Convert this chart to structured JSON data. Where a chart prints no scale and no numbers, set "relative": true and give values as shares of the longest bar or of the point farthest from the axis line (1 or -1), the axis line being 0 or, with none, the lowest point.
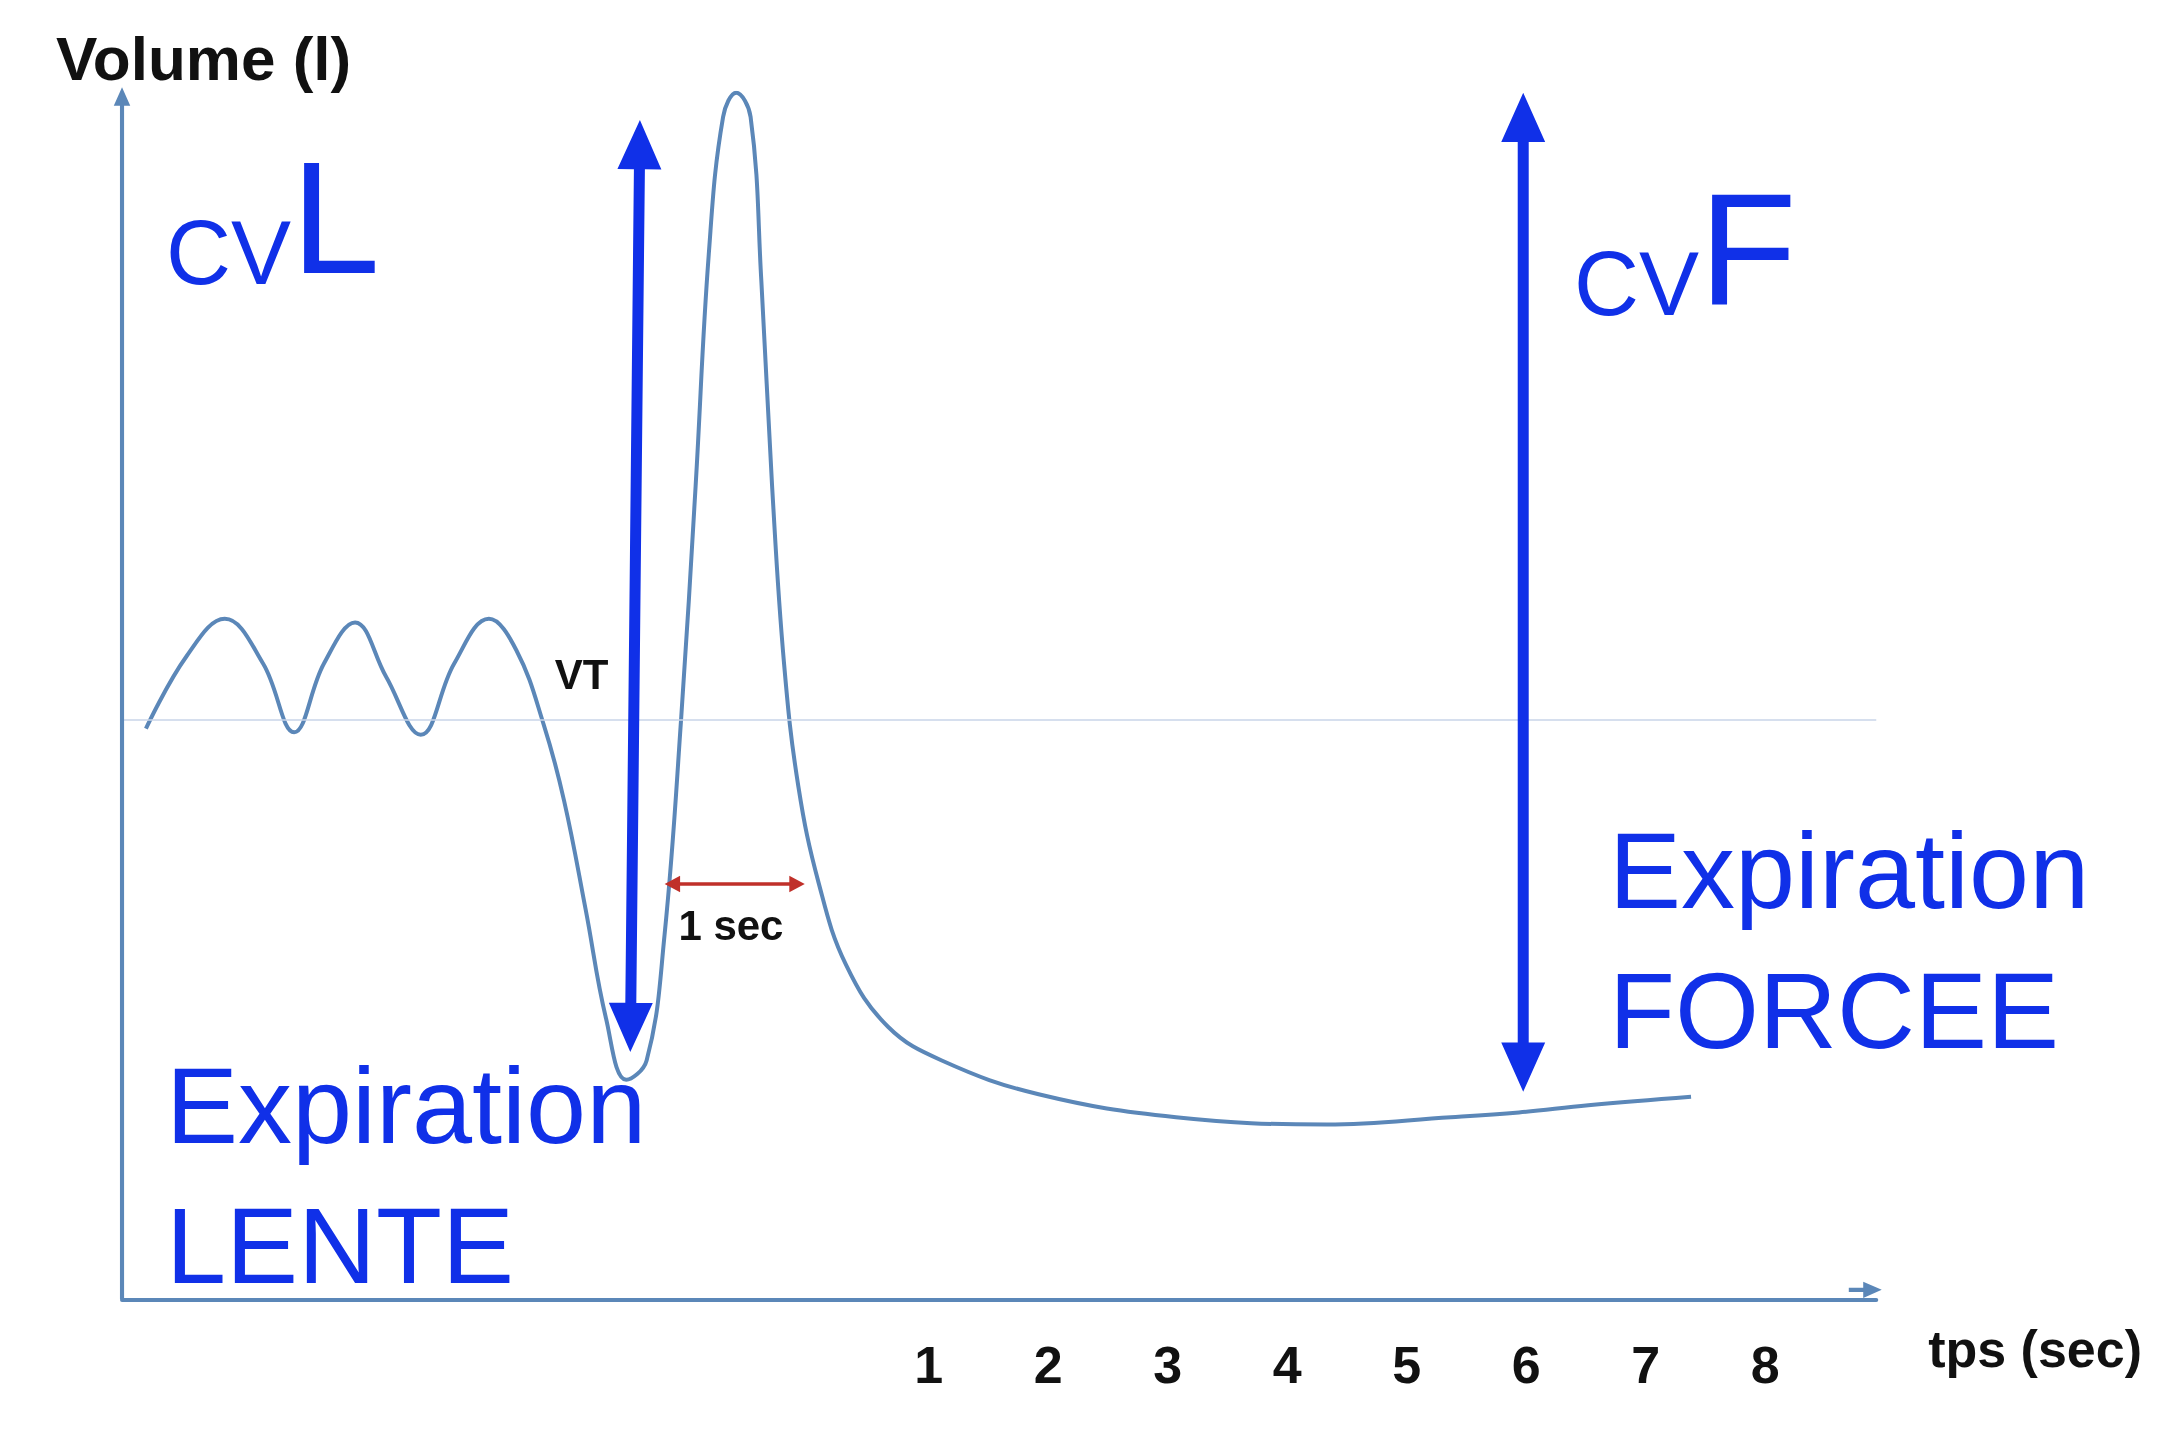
{
  "chart_data": {
    "type": "line",
    "relative": true,
    "xlabel": "tps (sec)",
    "ylabel": "Volume (l)",
    "xlim": [
      -5.75,
      8.93
    ],
    "xticks": [
      1,
      2,
      3,
      4,
      5,
      6,
      7,
      8
    ],
    "x": [
      -5.55,
      -5.21,
      -4.89,
      -4.57,
      -4.31,
      -4.06,
      -3.8,
      -3.54,
      -3.25,
      -2.97,
      -2.68,
      -2.45,
      -2.22,
      -2.05,
      -1.87,
      -1.7,
      -1.53,
      -1.36,
      -1.21,
      -1.07,
      -0.95,
      -0.84,
      -0.72,
      -0.61,
      -0.49,
      -0.4,
      -0.31,
      -0.21,
      -0.09,
      0.08,
      0.31,
      0.66,
      1.11,
      1.92,
      3.07,
      4.33,
      5.37,
      5.94,
      6.52,
      7.38
    ],
    "series": [
      {
        "color": "#5b87b8",
        "values": [
          0.473,
          0.533,
          0.564,
          0.527,
          0.47,
          0.527,
          0.561,
          0.516,
          0.468,
          0.527,
          0.564,
          0.538,
          0.476,
          0.413,
          0.323,
          0.233,
          0.182,
          0.198,
          0.302,
          0.483,
          0.674,
          0.866,
          0.98,
          1,
          0.98,
          0.844,
          0.674,
          0.527,
          0.425,
          0.345,
          0.277,
          0.226,
          0.198,
          0.17,
          0.151,
          0.145,
          0.151,
          0.155,
          0.161,
          0.168
        ]
      }
    ],
    "ref_lines": [
      {
        "axis": "y",
        "value": 0.478,
        "color": "#c8d4e8"
      }
    ],
    "annotations": [
      "CVL",
      "CVF",
      "Expiration\nLENTE",
      "Expiration\nFORCEE",
      "VT",
      "1 sec"
    ],
    "grid": false,
    "marker": "none",
    "line_style": "solid"
  }
}
